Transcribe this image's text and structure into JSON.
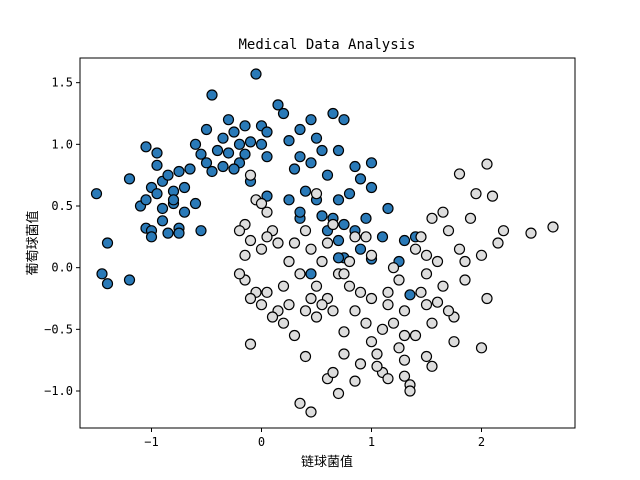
{
  "chart_data": {
    "type": "scatter",
    "title": "Medical Data Analysis",
    "xlabel": "链球菌值",
    "ylabel": "葡萄球菌值",
    "xlim": [
      -1.65,
      2.85
    ],
    "ylim": [
      -1.3,
      1.7
    ],
    "xticks": [
      -1,
      0,
      1,
      2
    ],
    "yticks": [
      -1.0,
      -0.5,
      0.0,
      0.5,
      1.0,
      1.5
    ],
    "ytick_labels": [
      "−1.0",
      "−0.5",
      "0.0",
      "0.5",
      "1.0",
      "1.5"
    ],
    "xtick_labels": [
      "−1",
      "0",
      "1",
      "2"
    ],
    "grid": false,
    "legend": "none",
    "series": [
      {
        "color": "#2a7ab8",
        "points": [
          [
            -1.5,
            0.6
          ],
          [
            -1.4,
            0.2
          ],
          [
            -1.45,
            -0.05
          ],
          [
            -1.4,
            -0.13
          ],
          [
            -1.2,
            0.72
          ],
          [
            -1.2,
            -0.1
          ],
          [
            -1.1,
            0.5
          ],
          [
            -1.05,
            0.32
          ],
          [
            -1.05,
            0.98
          ],
          [
            -1.0,
            0.3
          ],
          [
            -1.0,
            0.65
          ],
          [
            -1.0,
            0.25
          ],
          [
            -0.95,
            0.93
          ],
          [
            -0.95,
            0.83
          ],
          [
            -0.95,
            0.6
          ],
          [
            -0.9,
            0.7
          ],
          [
            -0.9,
            0.48
          ],
          [
            -0.9,
            0.38
          ],
          [
            -0.85,
            0.75
          ],
          [
            -0.85,
            0.28
          ],
          [
            -0.8,
            0.62
          ],
          [
            -0.8,
            0.52
          ],
          [
            -0.75,
            0.78
          ],
          [
            -0.75,
            0.32
          ],
          [
            -0.7,
            0.65
          ],
          [
            -0.7,
            0.45
          ],
          [
            -0.65,
            0.8
          ],
          [
            -0.6,
            1.0
          ],
          [
            -0.6,
            0.52
          ],
          [
            -0.55,
            0.92
          ],
          [
            -0.55,
            0.3
          ],
          [
            -0.5,
            0.85
          ],
          [
            -0.5,
            1.12
          ],
          [
            -0.45,
            0.78
          ],
          [
            -0.45,
            1.4
          ],
          [
            -0.4,
            0.95
          ],
          [
            -0.35,
            1.05
          ],
          [
            -0.35,
            0.82
          ],
          [
            -0.3,
            1.2
          ],
          [
            -0.3,
            0.93
          ],
          [
            -0.25,
            1.1
          ],
          [
            -0.2,
            1.0
          ],
          [
            -0.2,
            0.85
          ],
          [
            -0.15,
            0.92
          ],
          [
            -0.15,
            1.15
          ],
          [
            -0.1,
            1.02
          ],
          [
            -0.1,
            0.7
          ],
          [
            -0.05,
            1.57
          ],
          [
            0.0,
            1.15
          ],
          [
            0.0,
            1.0
          ],
          [
            0.05,
            0.9
          ],
          [
            0.05,
            1.1
          ],
          [
            0.05,
            0.58
          ],
          [
            0.15,
            1.32
          ],
          [
            0.2,
            1.25
          ],
          [
            0.25,
            1.03
          ],
          [
            0.25,
            0.55
          ],
          [
            0.3,
            0.8
          ],
          [
            0.35,
            0.4
          ],
          [
            0.35,
            0.9
          ],
          [
            0.35,
            1.12
          ],
          [
            0.4,
            0.62
          ],
          [
            0.45,
            1.2
          ],
          [
            0.45,
            0.85
          ],
          [
            0.5,
            1.05
          ],
          [
            0.5,
            0.55
          ],
          [
            0.55,
            0.95
          ],
          [
            0.55,
            0.42
          ],
          [
            0.6,
            0.3
          ],
          [
            0.6,
            0.75
          ],
          [
            0.65,
            1.25
          ],
          [
            0.65,
            0.4
          ],
          [
            0.7,
            0.95
          ],
          [
            0.7,
            0.22
          ],
          [
            0.75,
            1.2
          ],
          [
            0.75,
            0.35
          ],
          [
            0.75,
            0.08
          ],
          [
            0.8,
            0.6
          ],
          [
            0.85,
            0.82
          ],
          [
            0.85,
            0.3
          ],
          [
            0.9,
            0.15
          ],
          [
            0.9,
            0.72
          ],
          [
            0.95,
            0.4
          ],
          [
            1.0,
            0.85
          ],
          [
            1.0,
            0.65
          ],
          [
            1.0,
            0.07
          ],
          [
            1.1,
            0.25
          ],
          [
            1.15,
            0.48
          ],
          [
            1.25,
            0.05
          ],
          [
            1.3,
            0.22
          ],
          [
            1.35,
            -0.22
          ],
          [
            1.4,
            0.25
          ],
          [
            0.7,
            0.08
          ],
          [
            0.45,
            -0.05
          ],
          [
            0.35,
            0.45
          ],
          [
            0.7,
            0.55
          ],
          [
            -0.25,
            0.8
          ],
          [
            -0.75,
            0.28
          ],
          [
            -1.05,
            0.55
          ],
          [
            -0.8,
            0.55
          ]
        ]
      },
      {
        "color": "#dddddd",
        "points": [
          [
            -0.15,
            0.35
          ],
          [
            -0.1,
            0.75
          ],
          [
            -0.05,
            0.55
          ],
          [
            0.0,
            0.52
          ],
          [
            0.05,
            0.45
          ],
          [
            0.1,
            0.3
          ],
          [
            0.15,
            0.2
          ],
          [
            -0.2,
            0.3
          ],
          [
            -0.15,
            0.1
          ],
          [
            -0.1,
            0.22
          ],
          [
            0.0,
            0.15
          ],
          [
            0.05,
            0.25
          ],
          [
            0.2,
            -0.15
          ],
          [
            0.25,
            0.05
          ],
          [
            0.3,
            0.2
          ],
          [
            0.35,
            -0.05
          ],
          [
            0.4,
            0.3
          ],
          [
            0.45,
            0.15
          ],
          [
            0.5,
            0.6
          ],
          [
            0.5,
            -0.15
          ],
          [
            0.55,
            0.05
          ],
          [
            0.6,
            -0.25
          ],
          [
            0.65,
            -0.35
          ],
          [
            0.65,
            0.35
          ],
          [
            0.7,
            -0.05
          ],
          [
            0.75,
            -0.52
          ],
          [
            0.8,
            -0.15
          ],
          [
            0.85,
            -0.35
          ],
          [
            0.9,
            -0.2
          ],
          [
            0.95,
            -0.45
          ],
          [
            1.0,
            -0.25
          ],
          [
            1.0,
            -0.6
          ],
          [
            1.05,
            -0.7
          ],
          [
            1.1,
            -0.85
          ],
          [
            1.1,
            -0.5
          ],
          [
            1.15,
            -0.3
          ],
          [
            1.2,
            -0.45
          ],
          [
            1.25,
            -0.65
          ],
          [
            1.3,
            -0.75
          ],
          [
            1.35,
            -0.95
          ],
          [
            1.4,
            -0.55
          ],
          [
            1.45,
            -0.2
          ],
          [
            1.5,
            -0.3
          ],
          [
            1.5,
            0.1
          ],
          [
            1.55,
            -0.45
          ],
          [
            1.6,
            0.05
          ],
          [
            1.65,
            -0.15
          ],
          [
            1.7,
            0.3
          ],
          [
            1.75,
            -0.4
          ],
          [
            1.8,
            0.15
          ],
          [
            1.85,
            -0.1
          ],
          [
            1.9,
            0.4
          ],
          [
            1.95,
            0.6
          ],
          [
            2.0,
            0.1
          ],
          [
            2.05,
            -0.25
          ],
          [
            2.1,
            0.58
          ],
          [
            2.15,
            0.2
          ],
          [
            2.2,
            0.3
          ],
          [
            2.45,
            0.28
          ],
          [
            2.65,
            0.33
          ],
          [
            2.05,
            0.84
          ],
          [
            1.8,
            0.76
          ],
          [
            1.55,
            0.4
          ],
          [
            1.65,
            0.45
          ],
          [
            1.45,
            0.25
          ],
          [
            1.5,
            -0.05
          ],
          [
            1.4,
            0.15
          ],
          [
            1.25,
            -0.1
          ],
          [
            1.2,
            0.0
          ],
          [
            1.3,
            -0.35
          ],
          [
            1.0,
            0.1
          ],
          [
            0.95,
            0.25
          ],
          [
            0.85,
            0.25
          ],
          [
            0.8,
            0.05
          ],
          [
            0.75,
            -0.05
          ],
          [
            0.6,
            0.2
          ],
          [
            0.55,
            -0.3
          ],
          [
            0.5,
            -0.4
          ],
          [
            0.45,
            -0.25
          ],
          [
            0.4,
            -0.35
          ],
          [
            0.3,
            -0.55
          ],
          [
            0.25,
            -0.3
          ],
          [
            0.2,
            -0.45
          ],
          [
            0.15,
            -0.35
          ],
          [
            0.1,
            -0.4
          ],
          [
            0.05,
            -0.2
          ],
          [
            0.0,
            -0.3
          ],
          [
            -0.05,
            -0.2
          ],
          [
            -0.1,
            -0.25
          ],
          [
            -0.15,
            -0.1
          ],
          [
            -0.1,
            -0.62
          ],
          [
            -0.2,
            -0.05
          ],
          [
            0.4,
            -0.72
          ],
          [
            0.35,
            -1.1
          ],
          [
            0.45,
            -1.17
          ],
          [
            0.6,
            -0.9
          ],
          [
            0.65,
            -0.85
          ],
          [
            0.7,
            -1.02
          ],
          [
            0.75,
            -0.7
          ],
          [
            0.85,
            -0.92
          ],
          [
            0.9,
            -0.78
          ],
          [
            1.05,
            -0.8
          ],
          [
            1.15,
            -0.9
          ],
          [
            1.3,
            -0.88
          ],
          [
            1.35,
            -1.0
          ],
          [
            1.5,
            -0.72
          ],
          [
            1.55,
            -0.8
          ],
          [
            1.7,
            -0.35
          ],
          [
            1.75,
            -0.6
          ],
          [
            2.0,
            -0.65
          ],
          [
            1.85,
            0.05
          ],
          [
            1.6,
            -0.28
          ],
          [
            1.3,
            -0.55
          ],
          [
            1.15,
            -0.2
          ]
        ]
      }
    ]
  }
}
